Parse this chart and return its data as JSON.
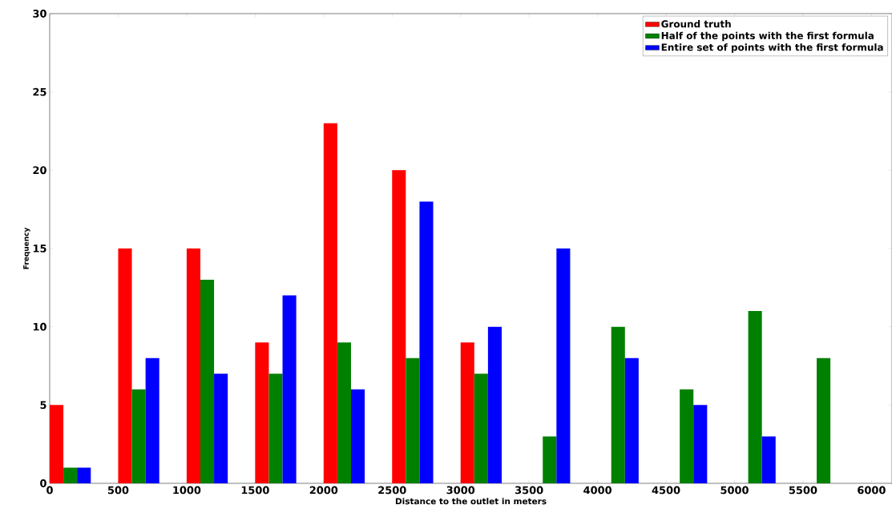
{
  "chart_data": {
    "type": "histogram",
    "xlabel": "Distance to the outlet in meters",
    "ylabel": "Frequency",
    "bins": [
      0,
      500,
      1000,
      1500,
      2000,
      2500,
      3000,
      3500,
      4000,
      4500,
      5000,
      5500,
      6000
    ],
    "series": [
      {
        "name": "Ground truth",
        "color": "#ff0000",
        "values": [
          5,
          15,
          15,
          9,
          23,
          20,
          9,
          0,
          0,
          0,
          0,
          0
        ]
      },
      {
        "name": "Half of the points with the first formula",
        "color": "#008000",
        "values": [
          1,
          6,
          13,
          7,
          9,
          8,
          7,
          3,
          10,
          6,
          11,
          8
        ]
      },
      {
        "name": "Entire set of points with the first formula",
        "color": "#0000ff",
        "values": [
          1,
          8,
          7,
          12,
          6,
          18,
          10,
          15,
          8,
          5,
          3,
          0
        ]
      }
    ],
    "xlim": [
      0,
      6150
    ],
    "ylim": [
      0,
      30
    ],
    "xticks": [
      0,
      500,
      1000,
      1500,
      2000,
      2500,
      3000,
      3500,
      4000,
      4500,
      5000,
      5500,
      6000
    ],
    "yticks": [
      0,
      5,
      10,
      15,
      20,
      25,
      30
    ],
    "legend": "top right",
    "grid": false
  }
}
